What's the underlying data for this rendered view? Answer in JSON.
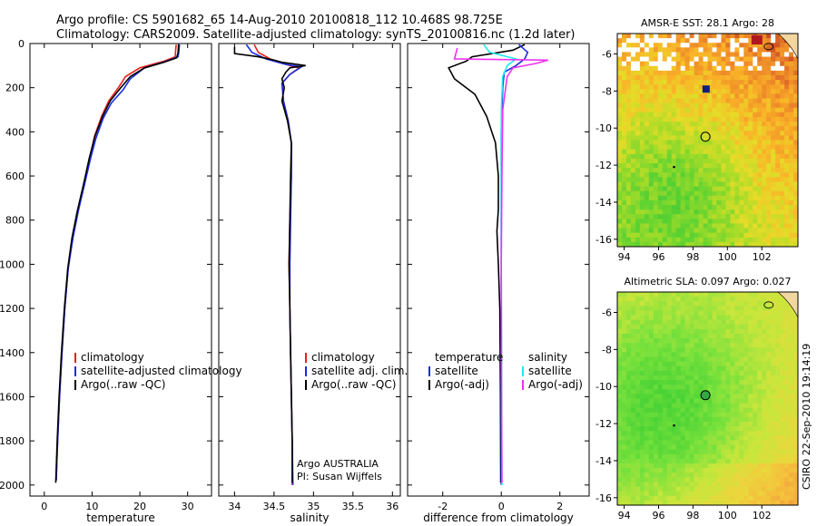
{
  "header": {
    "line1": "Argo profile: CS 5901682_65 14-Aug-2010 20100818_112 10.468S 98.725E",
    "line2": "Climatology: CARS2009. Satellite-adjusted climatology: synTS_20100816.nc (1.2d later)"
  },
  "colors": {
    "clim": "#e8201a",
    "sat": "#1a2ee0",
    "argo": "#000000",
    "sal_sat": "#22e8f0",
    "sal_argo": "#f030f0"
  },
  "chart_data": [
    {
      "type": "line",
      "id": "temperature",
      "xlabel": "temperature",
      "ylabel": "",
      "xlim": [
        -3,
        35
      ],
      "ylim": [
        2050,
        0
      ],
      "xticks": [
        0,
        10,
        20,
        30
      ],
      "yticks": [
        0,
        200,
        400,
        600,
        800,
        1000,
        1200,
        1400,
        1600,
        1800,
        2000
      ],
      "legend": [
        "climatology",
        "satellite-adjusted climatology",
        "Argo(..raw -QC)"
      ],
      "legend_colors": [
        "#e8201a",
        "#1a2ee0",
        "#000000"
      ],
      "series": [
        {
          "color": "#e8201a",
          "points": [
            [
              27.6,
              5
            ],
            [
              27.5,
              30
            ],
            [
              27.4,
              60
            ],
            [
              25,
              80
            ],
            [
              20,
              110
            ],
            [
              17,
              150
            ],
            [
              15.5,
              200
            ],
            [
              13.5,
              260
            ],
            [
              12,
              330
            ],
            [
              10.5,
              420
            ],
            [
              9.5,
              520
            ],
            [
              8.3,
              640
            ],
            [
              7,
              760
            ],
            [
              5.9,
              880
            ],
            [
              5,
              1020
            ],
            [
              4.3,
              1200
            ],
            [
              3.7,
              1400
            ],
            [
              3.2,
              1600
            ],
            [
              2.8,
              1800
            ],
            [
              2.5,
              1980
            ]
          ]
        },
        {
          "color": "#1a2ee0",
          "points": [
            [
              28.3,
              5
            ],
            [
              28.2,
              30
            ],
            [
              28,
              60
            ],
            [
              25.5,
              80
            ],
            [
              21,
              110
            ],
            [
              18,
              160
            ],
            [
              16.5,
              210
            ],
            [
              14,
              270
            ],
            [
              12.3,
              340
            ],
            [
              10.8,
              430
            ],
            [
              9.7,
              520
            ],
            [
              8.4,
              640
            ],
            [
              7.1,
              760
            ],
            [
              6,
              880
            ],
            [
              5,
              1020
            ],
            [
              4.3,
              1200
            ],
            [
              3.7,
              1400
            ],
            [
              3.2,
              1600
            ],
            [
              2.8,
              1800
            ],
            [
              2.5,
              1980
            ]
          ]
        },
        {
          "color": "#000000",
          "points": [
            [
              28.1,
              3
            ],
            [
              28,
              40
            ],
            [
              27.7,
              65
            ],
            [
              25,
              85
            ],
            [
              21,
              110
            ],
            [
              18,
              150
            ],
            [
              16,
              200
            ],
            [
              13.8,
              260
            ],
            [
              12.2,
              330
            ],
            [
              10.6,
              420
            ],
            [
              9.4,
              520
            ],
            [
              8.2,
              640
            ],
            [
              6.9,
              760
            ],
            [
              5.8,
              880
            ],
            [
              4.9,
              1020
            ],
            [
              4.2,
              1200
            ],
            [
              3.6,
              1400
            ],
            [
              3.1,
              1600
            ],
            [
              2.7,
              1800
            ],
            [
              2.4,
              1990
            ]
          ]
        }
      ]
    },
    {
      "type": "line",
      "id": "salinity",
      "xlabel": "salinity",
      "ylabel": "",
      "xlim": [
        33.8,
        36.1
      ],
      "ylim": [
        2050,
        0
      ],
      "xticks": [
        34,
        34.5,
        35,
        35.5,
        36
      ],
      "yticks": [
        0,
        200,
        400,
        600,
        800,
        1000,
        1200,
        1400,
        1600,
        1800,
        2000
      ],
      "legend": [
        "climatology",
        "satellite adj. clim.",
        "Argo(..raw -QC)"
      ],
      "legend_colors": [
        "#e8201a",
        "#1a2ee0",
        "#000000"
      ],
      "notes": [
        "Argo AUSTRALIA",
        "PI: Susan Wijffels"
      ],
      "series": [
        {
          "color": "#e8201a",
          "points": [
            [
              34.25,
              5
            ],
            [
              34.3,
              40
            ],
            [
              34.45,
              70
            ],
            [
              34.7,
              100
            ],
            [
              34.82,
              110
            ],
            [
              34.7,
              140
            ],
            [
              34.6,
              180
            ],
            [
              34.62,
              260
            ],
            [
              34.68,
              350
            ],
            [
              34.72,
              450
            ],
            [
              34.72,
              600
            ],
            [
              34.7,
              800
            ],
            [
              34.69,
              1000
            ],
            [
              34.7,
              1200
            ],
            [
              34.71,
              1400
            ],
            [
              34.72,
              1600
            ],
            [
              34.73,
              1800
            ],
            [
              34.73,
              2000
            ]
          ]
        },
        {
          "color": "#1a2ee0",
          "points": [
            [
              34.15,
              5
            ],
            [
              34.22,
              40
            ],
            [
              34.4,
              70
            ],
            [
              34.65,
              95
            ],
            [
              34.85,
              105
            ],
            [
              34.7,
              140
            ],
            [
              34.6,
              180
            ],
            [
              34.62,
              260
            ],
            [
              34.68,
              350
            ],
            [
              34.72,
              450
            ],
            [
              34.72,
              600
            ],
            [
              34.71,
              800
            ],
            [
              34.7,
              1000
            ],
            [
              34.7,
              1200
            ],
            [
              34.71,
              1400
            ],
            [
              34.72,
              1600
            ],
            [
              34.73,
              1800
            ],
            [
              34.74,
              2000
            ]
          ]
        },
        {
          "color": "#000000",
          "points": [
            [
              34.0,
              15
            ],
            [
              34.0,
              45
            ],
            [
              34.3,
              60
            ],
            [
              34.5,
              75
            ],
            [
              34.6,
              85
            ],
            [
              34.9,
              100
            ],
            [
              34.7,
              110
            ],
            [
              34.65,
              130
            ],
            [
              34.6,
              160
            ],
            [
              34.63,
              200
            ],
            [
              34.6,
              260
            ],
            [
              34.67,
              350
            ],
            [
              34.72,
              450
            ],
            [
              34.71,
              600
            ],
            [
              34.7,
              800
            ],
            [
              34.69,
              1000
            ],
            [
              34.7,
              1200
            ],
            [
              34.71,
              1400
            ],
            [
              34.72,
              1600
            ],
            [
              34.73,
              1800
            ],
            [
              34.73,
              1990
            ]
          ]
        }
      ]
    },
    {
      "type": "line",
      "id": "difference",
      "xlabel": "difference from climatology",
      "ylabel": "",
      "xlim": [
        -3.2,
        3.0
      ],
      "ylim": [
        2050,
        0
      ],
      "xticks": [
        -2,
        0,
        2
      ],
      "yticks": [
        0,
        200,
        400,
        600,
        800,
        1000,
        1200,
        1400,
        1600,
        1800,
        2000
      ],
      "legend_left": [
        "temperature",
        "satellite",
        "Argo(-adj)"
      ],
      "legend_left_colors": [
        "#000000",
        "#1a2ee0",
        "#000000"
      ],
      "legend_right": [
        "salinity",
        "satellite",
        "Argo(-adj)"
      ],
      "legend_right_colors": [
        "#000000",
        "#22e8f0",
        "#f030f0"
      ],
      "series": [
        {
          "color": "#000000",
          "points": [
            [
              0.8,
              5
            ],
            [
              0.4,
              30
            ],
            [
              -1,
              60
            ],
            [
              -1.2,
              80
            ],
            [
              -1.8,
              110
            ],
            [
              -1.6,
              160
            ],
            [
              -0.9,
              230
            ],
            [
              -0.5,
              330
            ],
            [
              -0.2,
              450
            ],
            [
              -0.1,
              600
            ],
            [
              -0.1,
              750
            ],
            [
              -0.15,
              850
            ],
            [
              -0.1,
              1000
            ],
            [
              -0.05,
              1200
            ],
            [
              -0.03,
              1600
            ],
            [
              -0.02,
              1990
            ]
          ]
        },
        {
          "color": "#1a2ee0",
          "points": [
            [
              0.6,
              5
            ],
            [
              0.9,
              40
            ],
            [
              0.8,
              70
            ],
            [
              0.5,
              100
            ],
            [
              0.1,
              130
            ],
            [
              0.05,
              200
            ],
            [
              0.0,
              400
            ],
            [
              0.0,
              1000
            ],
            [
              0.0,
              1600
            ],
            [
              0.0,
              2000
            ]
          ]
        },
        {
          "color": "#22e8f0",
          "points": [
            [
              -0.6,
              5
            ],
            [
              -0.4,
              40
            ],
            [
              0.5,
              70
            ],
            [
              0.2,
              100
            ],
            [
              0.05,
              150
            ],
            [
              0.0,
              300
            ],
            [
              0.0,
              1000
            ],
            [
              0.02,
              2000
            ]
          ]
        },
        {
          "color": "#f030f0",
          "points": [
            [
              -1.5,
              20
            ],
            [
              -1.6,
              70
            ],
            [
              1.6,
              75
            ],
            [
              1.2,
              90
            ],
            [
              0.4,
              110
            ],
            [
              0.2,
              150
            ],
            [
              0.05,
              300
            ],
            [
              0.02,
              600
            ],
            [
              0.0,
              1000
            ],
            [
              0.01,
              1600
            ],
            [
              0.02,
              1990
            ]
          ]
        }
      ]
    },
    {
      "type": "heatmap",
      "id": "sst-map",
      "title": "AMSR-E SST: 28.1 Argo: 28",
      "xlim": [
        93.6,
        104.1
      ],
      "ylim": [
        -16.4,
        -4.9
      ],
      "xticks": [
        94,
        96,
        98,
        100,
        102
      ],
      "yticks": [
        -6,
        -8,
        -10,
        -12,
        -14,
        -16
      ],
      "argo_position": [
        98.725,
        -10.468
      ]
    },
    {
      "type": "heatmap",
      "id": "sla-map",
      "title": "Altimetric SLA: 0.097 Argo: 0.027",
      "xlim": [
        93.6,
        104.1
      ],
      "ylim": [
        -16.4,
        -4.9
      ],
      "xticks": [
        94,
        96,
        98,
        100,
        102
      ],
      "yticks": [
        -6,
        -8,
        -10,
        -12,
        -14,
        -16
      ],
      "argo_position": [
        98.725,
        -10.468
      ]
    }
  ],
  "footer": {
    "stamp": "CSIRO 22-Sep-2010 19:14:19"
  }
}
